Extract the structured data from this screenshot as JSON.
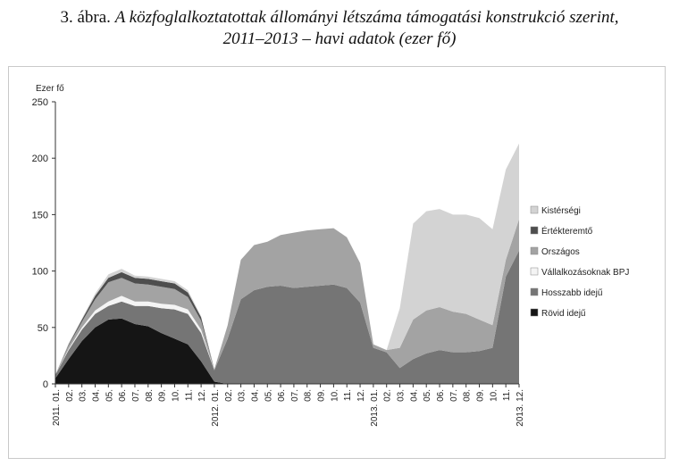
{
  "title": {
    "number": "3. ábra.",
    "line1": "A közfoglalkoztatottak állományi létszáma támogatási konstrukció szerint,",
    "line2": "2011–2013 – havi adatok (ezer fő)"
  },
  "chart_data": {
    "type": "area",
    "stacked": true,
    "ylabel": "Ezer fő",
    "ylim": [
      0,
      250
    ],
    "yticks": [
      0,
      50,
      100,
      150,
      200,
      250
    ],
    "grid": false,
    "legend_position": "right",
    "categories": [
      "2011. 01.",
      "02.",
      "03.",
      "04.",
      "05.",
      "06.",
      "07.",
      "08.",
      "09.",
      "10.",
      "11.",
      "12.",
      "2012. 01.",
      "02.",
      "03.",
      "04.",
      "05.",
      "06.",
      "07.",
      "08.",
      "09.",
      "10.",
      "11.",
      "12.",
      "2013. 01.",
      "02.",
      "03.",
      "04.",
      "05.",
      "06.",
      "07.",
      "08.",
      "09.",
      "10.",
      "11.",
      "2013. 12."
    ],
    "series": [
      {
        "name": "Rövid idejű",
        "color": "#151515",
        "values": [
          5,
          22,
          38,
          50,
          57,
          58,
          53,
          51,
          45,
          40,
          35,
          20,
          2,
          0,
          0,
          0,
          0,
          0,
          0,
          0,
          0,
          0,
          0,
          0,
          0,
          0,
          0,
          0,
          0,
          0,
          0,
          0,
          0,
          0,
          0,
          0
        ]
      },
      {
        "name": "Hosszabb idejű",
        "color": "#757575",
        "values": [
          3,
          8,
          10,
          12,
          12,
          15,
          16,
          18,
          22,
          26,
          27,
          25,
          10,
          40,
          75,
          83,
          86,
          87,
          85,
          86,
          87,
          88,
          85,
          72,
          32,
          28,
          14,
          22,
          27,
          30,
          28,
          28,
          29,
          32,
          95,
          118
        ]
      },
      {
        "name": "Vállalkozásoknak BPJ",
        "color": "#f4f4f4",
        "values": [
          0,
          1,
          2,
          3,
          4,
          5,
          4,
          4,
          4,
          4,
          4,
          3,
          0,
          0,
          0,
          0,
          0,
          0,
          0,
          0,
          0,
          0,
          0,
          0,
          0,
          0,
          0,
          0,
          0,
          0,
          0,
          0,
          0,
          0,
          0,
          0
        ]
      },
      {
        "name": "Országos",
        "color": "#a3a3a3",
        "values": [
          0,
          3,
          5,
          10,
          17,
          16,
          16,
          15,
          15,
          14,
          11,
          8,
          1,
          12,
          35,
          40,
          40,
          45,
          49,
          50,
          50,
          50,
          45,
          35,
          3,
          2,
          18,
          35,
          38,
          38,
          36,
          34,
          28,
          20,
          15,
          28
        ]
      },
      {
        "name": "Értékteremtő",
        "color": "#4e4e4e",
        "values": [
          0,
          1,
          2,
          3,
          4,
          5,
          5,
          5,
          5,
          5,
          4,
          3,
          0,
          0,
          0,
          0,
          0,
          0,
          0,
          0,
          0,
          0,
          0,
          0,
          0,
          0,
          0,
          0,
          0,
          0,
          0,
          0,
          0,
          0,
          0,
          0
        ]
      },
      {
        "name": "Kistérségi",
        "color": "#d3d3d3",
        "values": [
          0,
          1,
          1,
          2,
          3,
          3,
          2,
          2,
          2,
          2,
          2,
          1,
          0,
          0,
          0,
          0,
          0,
          0,
          0,
          0,
          0,
          0,
          0,
          0,
          0,
          0,
          35,
          85,
          88,
          87,
          86,
          88,
          90,
          85,
          80,
          67
        ]
      }
    ]
  }
}
